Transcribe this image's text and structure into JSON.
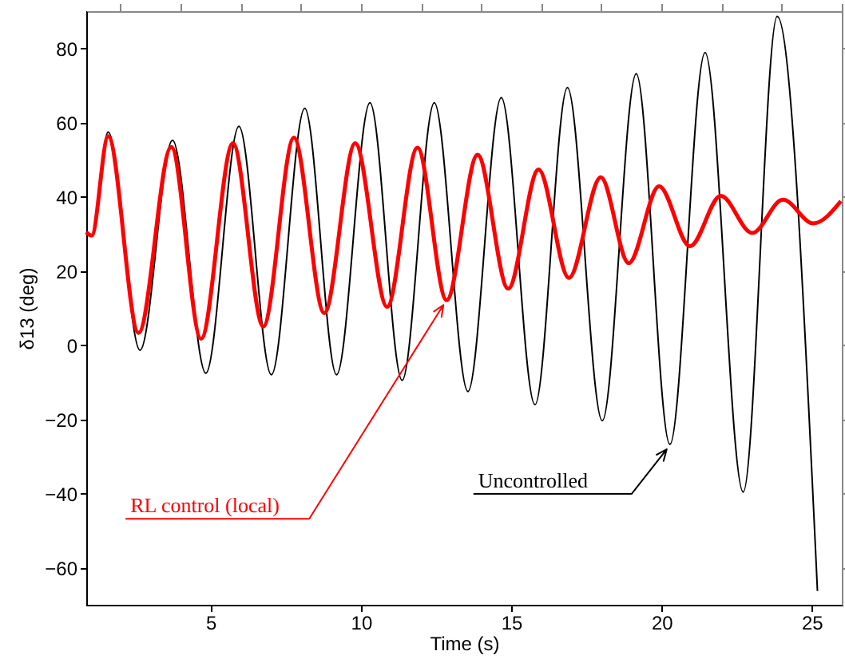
{
  "chart_data": {
    "type": "line",
    "xlabel": "Time (s)",
    "ylabel": "δ13 (deg)",
    "xlim": [
      0.86,
      26
    ],
    "ylim": [
      -70,
      90
    ],
    "xticks": [
      5,
      10,
      15,
      20,
      25
    ],
    "yticks": [
      -60,
      -40,
      -20,
      0,
      20,
      40,
      60,
      80
    ],
    "grid": false,
    "series": [
      {
        "name": "Uncontrolled",
        "color": "#000000",
        "x": [
          0.86,
          1.04,
          1.59,
          2.65,
          3.73,
          4.84,
          5.94,
          7.02,
          8.13,
          9.19,
          10.3,
          11.37,
          12.44,
          13.56,
          14.67,
          15.79,
          16.87,
          18.03,
          19.16,
          20.28,
          21.45,
          22.72,
          23.85,
          25.19
        ],
        "values": [
          30.4,
          29.5,
          57.4,
          -1.4,
          55.2,
          -7.6,
          59,
          -8,
          63.8,
          -8,
          65.3,
          -9.5,
          65.3,
          -12.5,
          66.7,
          -16.1,
          69.4,
          -20.4,
          73.1,
          -26.8,
          78.8,
          -39.6,
          88.6,
          -66.3
        ]
      },
      {
        "name": "RL control (local)",
        "color": "#ff0000",
        "x": [
          0.86,
          1.04,
          1.59,
          2.6,
          3.69,
          4.68,
          5.74,
          6.75,
          7.77,
          8.78,
          9.81,
          10.87,
          11.88,
          12.85,
          13.88,
          14.9,
          15.91,
          16.92,
          17.98,
          18.91,
          19.92,
          20.95,
          21.97,
          23.02,
          24.04,
          25.05,
          25.97
        ],
        "values": [
          30.4,
          29.5,
          56.3,
          3.3,
          53.4,
          1.7,
          54.4,
          5,
          55.9,
          8.6,
          54.4,
          10.3,
          53.2,
          12.1,
          51.3,
          15.2,
          47.3,
          18.1,
          45.2,
          22.1,
          42.8,
          26.6,
          40.2,
          30.2,
          39.2,
          32.8,
          38.8
        ]
      }
    ]
  }
}
